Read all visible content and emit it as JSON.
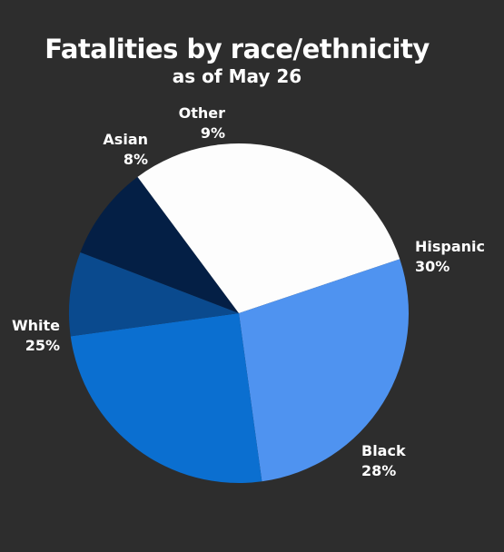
{
  "background_color": "#2d2d2d",
  "chart_data": {
    "type": "pie",
    "title": "Fatalities by race/ethnicity",
    "subtitle": "as of May 26",
    "slices": [
      {
        "label": "Hispanic",
        "value": 30,
        "value_label": "30%",
        "color": "#fdfdfd"
      },
      {
        "label": "Black",
        "value": 28,
        "value_label": "28%",
        "color": "#4f93f0"
      },
      {
        "label": "White",
        "value": 25,
        "value_label": "25%",
        "color": "#0b6fd0"
      },
      {
        "label": "Asian",
        "value": 8,
        "value_label": "8%",
        "color": "#0a4a8e"
      },
      {
        "label": "Other",
        "value": 9,
        "value_label": "9%",
        "color": "#041f45"
      }
    ]
  }
}
